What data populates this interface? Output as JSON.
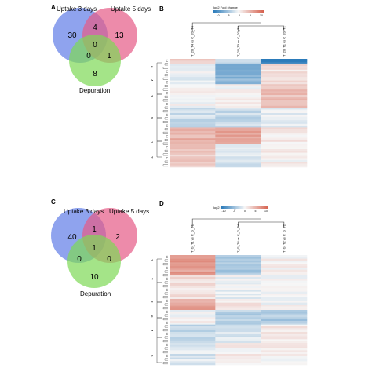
{
  "panels": {
    "A": {
      "letter": "A",
      "sets": [
        "Uptake 3 days",
        "Uptake 5 days",
        "Depuration"
      ],
      "regions": {
        "only_3d": "30",
        "only_5d": "13",
        "only_dep": "8",
        "3d_5d": "4",
        "3d_dep": "0",
        "5d_dep": "1",
        "all": "0"
      },
      "colors": [
        "#6a84e8",
        "#e65a86",
        "#7ed956"
      ]
    },
    "B": {
      "letter": "B",
      "legend_title": "log2 Fold change",
      "legend_ticks": [
        "-10",
        "-5",
        "0",
        "5",
        "10"
      ],
      "columns": [
        "T_20_T4 vs C_20_T4",
        "T_20_T3 vs C_20_T3",
        "T_20_T1 vs C_20_T1"
      ],
      "row_cluster_labels": [
        "6",
        "4",
        "3",
        "5",
        "1",
        "2"
      ]
    },
    "C": {
      "letter": "C",
      "sets": [
        "Uptake 3 days",
        "Uptake 5 days",
        "Depuration"
      ],
      "regions": {
        "only_3d": "40",
        "only_5d": "2",
        "only_dep": "10",
        "3d_5d": "1",
        "3d_dep": "0",
        "5d_dep": "0",
        "all": "1"
      },
      "colors": [
        "#6a84e8",
        "#e65a86",
        "#7ed956"
      ]
    },
    "D": {
      "letter": "D",
      "legend_title": "log2 Fold change",
      "legend_ticks": [
        "-10",
        "-5",
        "0",
        "5",
        "10"
      ],
      "columns": [
        "T_G_T1 vs C_G_T1",
        "T_G_T4 vs C_G_T4",
        "T_G_T2 vs C_G_T2"
      ],
      "row_cluster_labels": [
        "1",
        "2",
        "3",
        "6",
        "4",
        "5"
      ]
    }
  },
  "colors": {
    "heatmap_low": "#2b7bba",
    "heatmap_mid": "#f7f7f7",
    "heatmap_high": "#d6604d"
  }
}
